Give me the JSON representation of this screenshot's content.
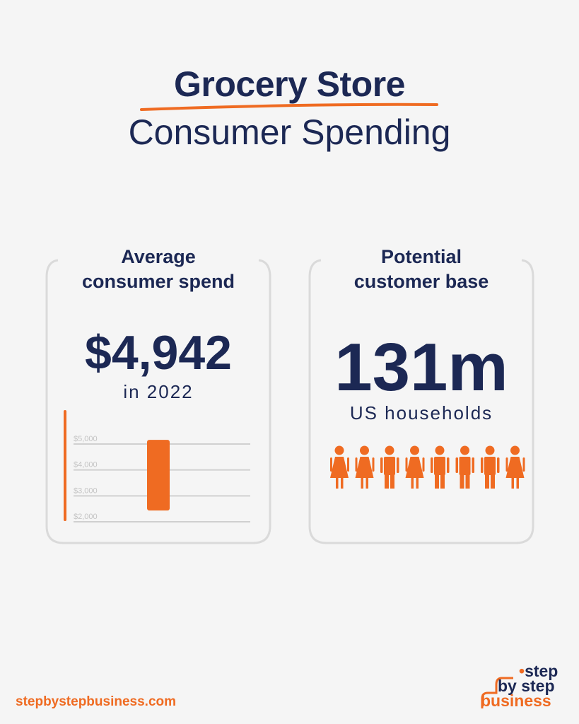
{
  "title": {
    "line1": "Grocery Store",
    "line2": "Consumer Spending"
  },
  "card_left": {
    "heading_line1": "Average",
    "heading_line2": "consumer spend",
    "stat_value": "$4,942",
    "stat_caption": "in 2022"
  },
  "card_right": {
    "heading_line1": "Potential",
    "heading_line2": "customer base",
    "stat_value": "131m",
    "stat_caption": "US households",
    "people_icons": [
      "female-icon",
      "female-icon",
      "male-icon",
      "female-icon",
      "male-icon",
      "male-icon",
      "male-icon",
      "female-icon"
    ]
  },
  "chart_data": {
    "type": "bar",
    "categories": [
      "2022"
    ],
    "values": [
      4942
    ],
    "ylim": [
      2000,
      5000
    ],
    "yticks": [
      2000,
      3000,
      4000,
      5000
    ],
    "ytick_labels": [
      "$2,000",
      "$3,000",
      "$4,000",
      "$5,000"
    ],
    "grid": true,
    "title": "",
    "xlabel": "",
    "ylabel": ""
  },
  "footer": {
    "url": "stepbystepbusiness.com"
  },
  "logo": {
    "line1": "step",
    "line2": "by step",
    "line3": "business"
  },
  "colors": {
    "navy": "#1c2854",
    "orange": "#ef6b22",
    "frame": "#d9d9d9",
    "grid": "#d0d0d0"
  }
}
